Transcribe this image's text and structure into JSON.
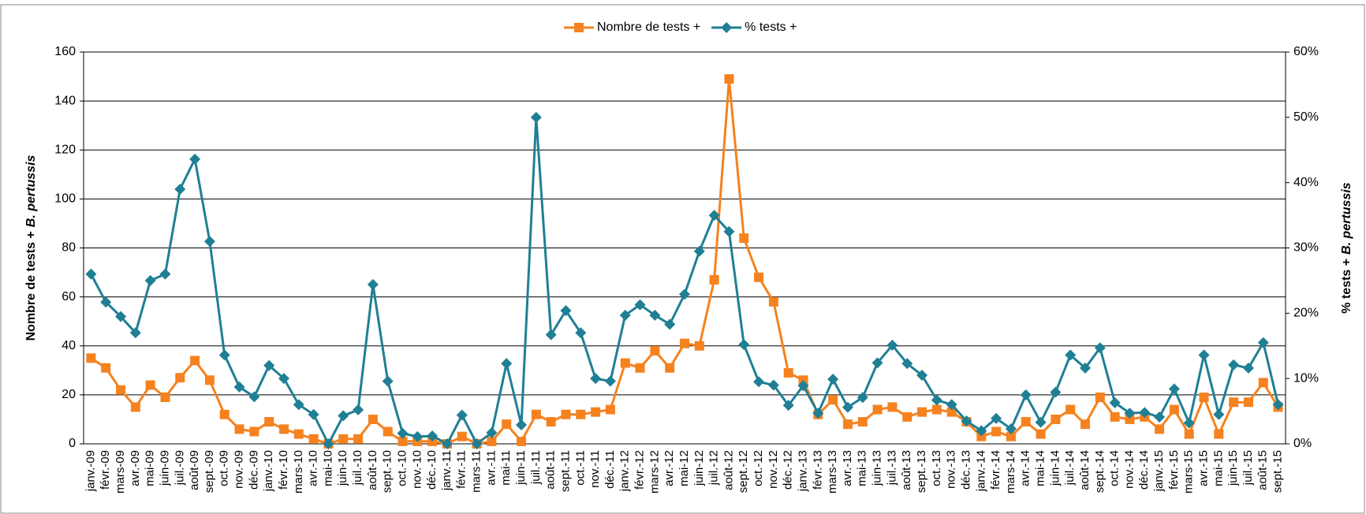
{
  "chart_data": {
    "type": "line",
    "ylabel": {
      "text": "Nombre de tests +",
      "italic": "B. pertussis"
    },
    "y2label": {
      "text": "% tests +",
      "italic": "B. pertussis"
    },
    "categories": [
      "janv.-09",
      "févr.-09",
      "mars-09",
      "avr.-09",
      "mai-09",
      "juin-09",
      "juil.-09",
      "août-09",
      "sept.-09",
      "oct.-09",
      "nov.-09",
      "déc.-09",
      "janv.-10",
      "févr.-10",
      "mars-10",
      "avr.-10",
      "mai-10",
      "juin-10",
      "juil.-10",
      "août-10",
      "sept.-10",
      "oct.-10",
      "nov.-10",
      "déc.-10",
      "janv.-11",
      "févr.-11",
      "mars-11",
      "avr.-11",
      "mai-11",
      "juin-11",
      "juil.-11",
      "août-11",
      "sept.-11",
      "oct.-11",
      "nov.-11",
      "déc.-11",
      "janv.-12",
      "févr.-12",
      "mars-12",
      "avr.-12",
      "mai-12",
      "juin-12",
      "juil.-12",
      "août-12",
      "sept.-12",
      "oct.-12",
      "nov.-12",
      "déc.-12",
      "janv.-13",
      "févr.-13",
      "mars-13",
      "avr.-13",
      "mai-13",
      "juin-13",
      "juil.-13",
      "août-13",
      "sept.-13",
      "oct.-13",
      "nov.-13",
      "déc.-13",
      "janv.-14",
      "févr.-14",
      "mars-14",
      "avr.-14",
      "mai-14",
      "juin-14",
      "juil.-14",
      "août-14",
      "sept.-14",
      "oct.-14",
      "nov.-14",
      "déc.-14",
      "janv.-15",
      "févr.-15",
      "mars-15",
      "avr.-15",
      "mai-15",
      "juin-15",
      "juil.-15",
      "août-15",
      "sept.-15"
    ],
    "series": [
      {
        "name": "Nombre de tests +",
        "color": "#f5821f",
        "marker": "square",
        "values": [
          35,
          31,
          22,
          15,
          24,
          19,
          27,
          34,
          26,
          12,
          6,
          5,
          9,
          6,
          4,
          2,
          0,
          2,
          2,
          10,
          5,
          1,
          1,
          1,
          0,
          3,
          0,
          1,
          8,
          1,
          12,
          9,
          12,
          12,
          13,
          14,
          33,
          31,
          38,
          31,
          41,
          40,
          67,
          149,
          84,
          68,
          58,
          29,
          26,
          12,
          18,
          8,
          9,
          14,
          15,
          11,
          13,
          14,
          13,
          9,
          3,
          5,
          3,
          9,
          4,
          10,
          14,
          8,
          19,
          11,
          10,
          11,
          6,
          14,
          4,
          19,
          4,
          17,
          17,
          25,
          15
        ]
      },
      {
        "name": "% tests +",
        "color": "#1f7f94",
        "marker": "diamond",
        "axis": "y2",
        "values": [
          26,
          21.7,
          19.5,
          17,
          25,
          26,
          39,
          43.6,
          31,
          13.6,
          8.7,
          7.2,
          12,
          10,
          6,
          4.5,
          0,
          4.3,
          5.2,
          24.4,
          9.6,
          1.6,
          1.1,
          1.2,
          0,
          4.4,
          0,
          1.7,
          12.3,
          2.9,
          50,
          16.7,
          20.4,
          17,
          10,
          9.6,
          19.7,
          21.3,
          19.7,
          18.3,
          22.9,
          29.5,
          35,
          32.5,
          15.2,
          9.5,
          9,
          5.9,
          8.9,
          4.7,
          9.9,
          5.6,
          7.1,
          12.4,
          15.1,
          12.3,
          10.5,
          6.7,
          6,
          3.5,
          2,
          3.9,
          2.3,
          7.5,
          3.3,
          7.9,
          13.6,
          11.6,
          14.7,
          6.3,
          4.7,
          4.8,
          4.1,
          8.4,
          3.2,
          13.6,
          4.5,
          12.1,
          11.6,
          15.5,
          6
        ]
      }
    ],
    "ylim": [
      0,
      160
    ],
    "yticks": [
      0,
      20,
      40,
      60,
      80,
      100,
      120,
      140,
      160
    ],
    "y2lim": [
      0,
      60
    ],
    "y2ticks": [
      {
        "value": 0,
        "label": "0%"
      },
      {
        "value": 10,
        "label": "10%"
      },
      {
        "value": 20,
        "label": "20%"
      },
      {
        "value": 30,
        "label": "30%"
      },
      {
        "value": 40,
        "label": "40%"
      },
      {
        "value": 50,
        "label": "50%"
      },
      {
        "value": 60,
        "label": "60%"
      }
    ],
    "grid": true,
    "legend": "top"
  }
}
